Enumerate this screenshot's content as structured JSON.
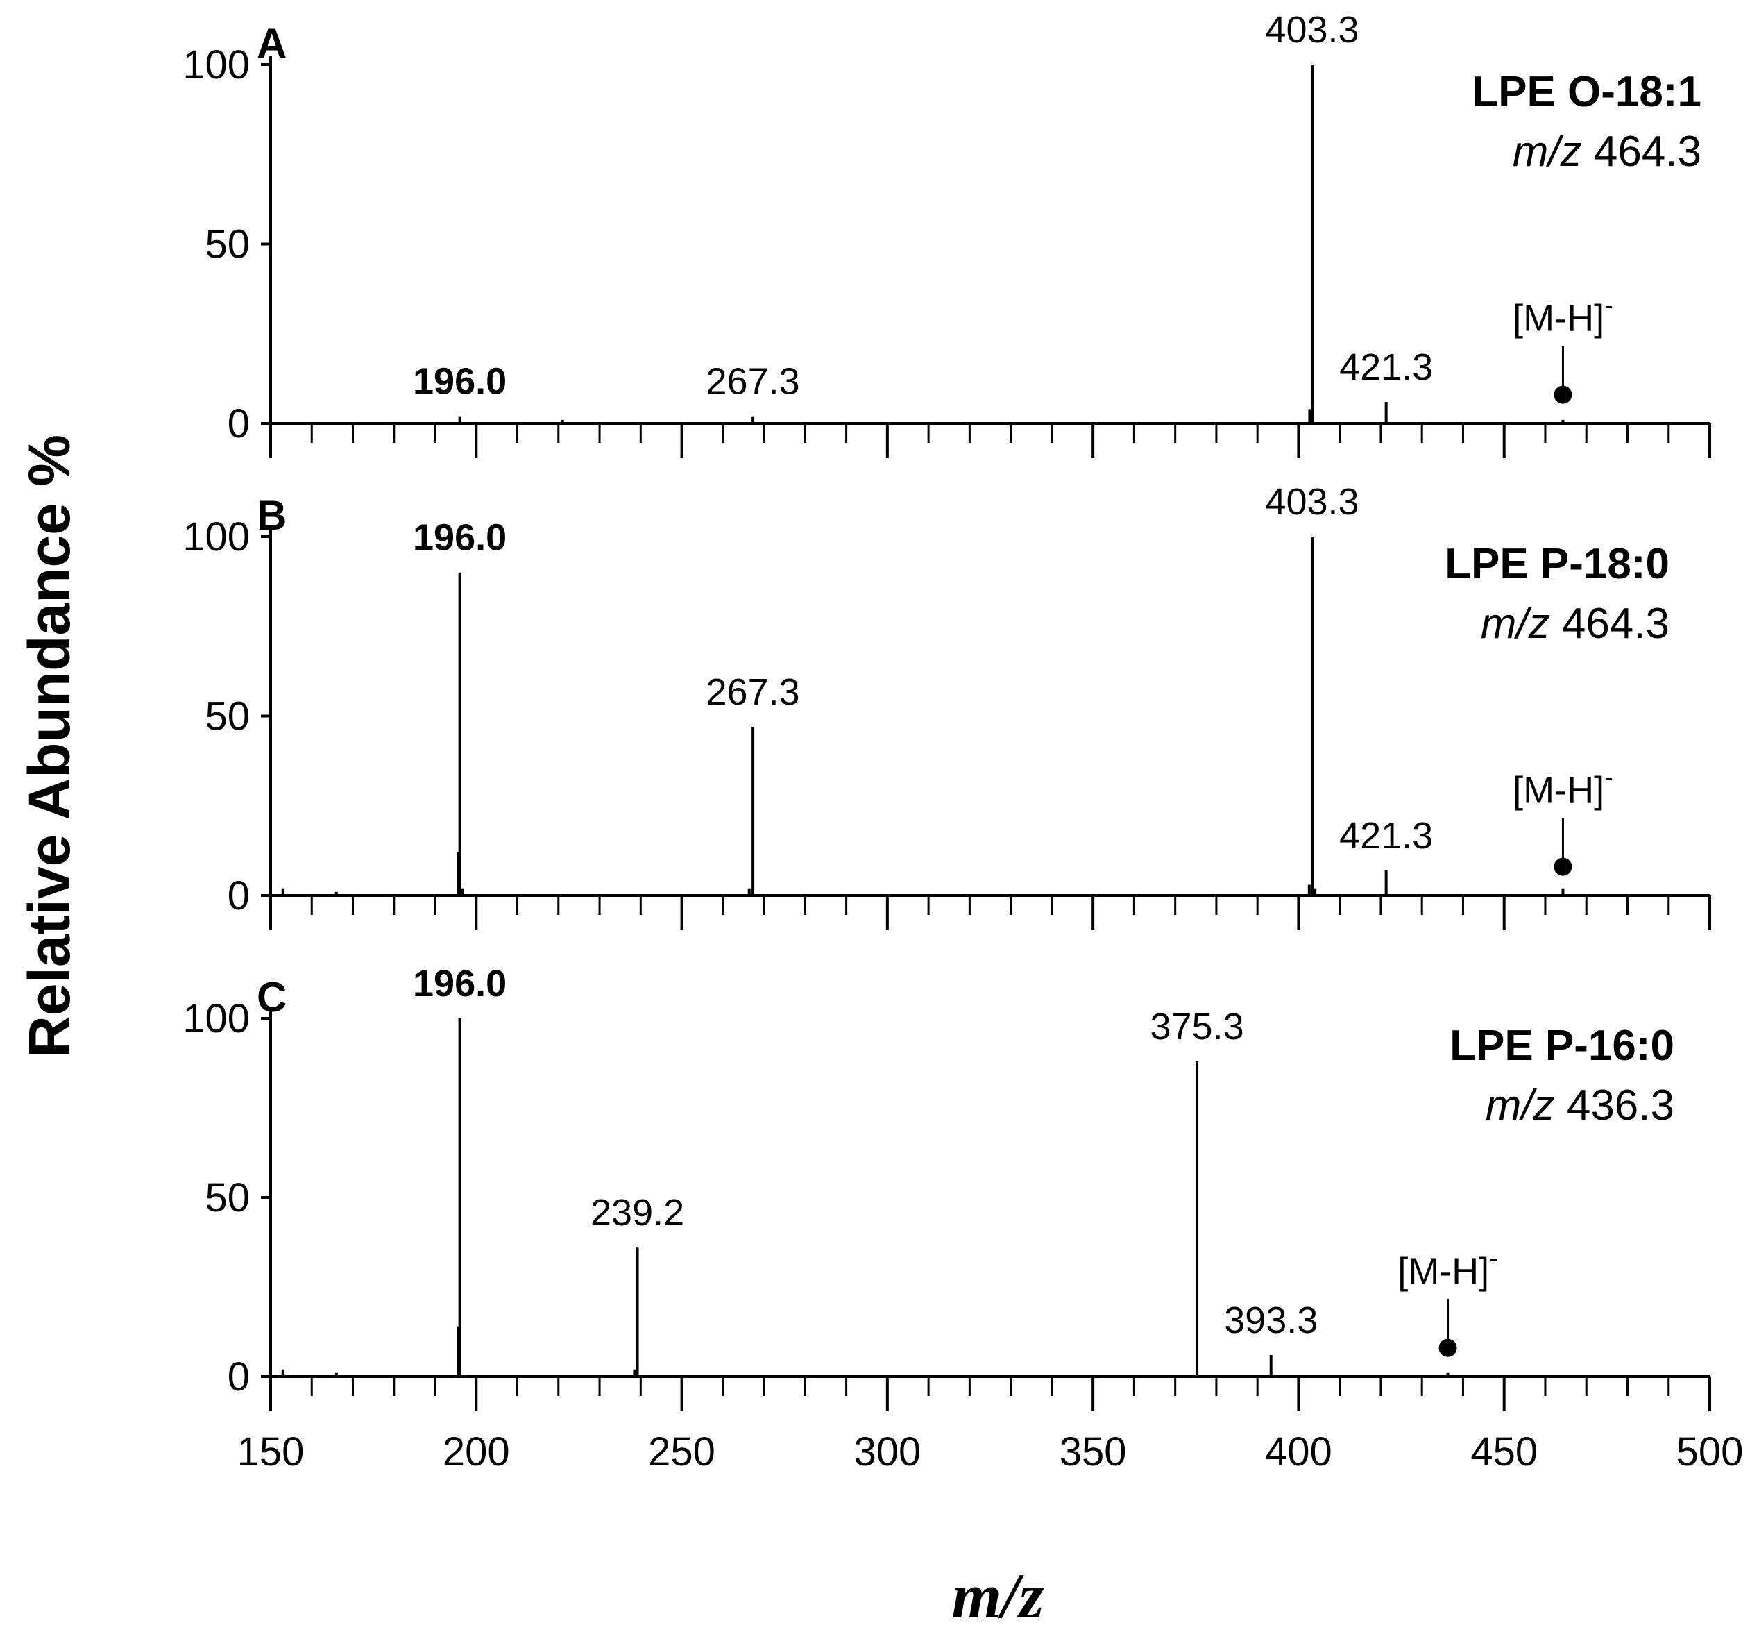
{
  "figure": {
    "ylabel": "Relative Abundance %",
    "xlabel": "m/z"
  },
  "chart_data": [
    {
      "type": "bar",
      "panel": "A",
      "title": "LPE O-18:1",
      "precursor": {
        "prefix": "m/z",
        "value": "464.3"
      },
      "xlim": [
        150,
        500
      ],
      "ylim": [
        0,
        100
      ],
      "yticks": [
        0,
        50,
        100
      ],
      "xticks": [
        150,
        200,
        250,
        300,
        350,
        400,
        450,
        500
      ],
      "show_xtick_labels": false,
      "peaks": [
        {
          "x": 196.0,
          "y": 2
        },
        {
          "x": 221.0,
          "y": 1
        },
        {
          "x": 267.3,
          "y": 2
        },
        {
          "x": 402.7,
          "y": 4
        },
        {
          "x": 403.3,
          "y": 100
        },
        {
          "x": 421.3,
          "y": 6
        },
        {
          "x": 464.3,
          "y": 1
        }
      ],
      "labels": [
        {
          "x": 196.0,
          "text": "196.0",
          "bold": true
        },
        {
          "x": 267.3,
          "text": "267.3",
          "bold": false
        },
        {
          "x": 403.3,
          "text": "403.3",
          "bold": false
        },
        {
          "x": 421.3,
          "text": "421.3",
          "bold": false
        }
      ],
      "marker": {
        "x": 464.3,
        "y": 8,
        "label": "[M-H]",
        "superscript": "-"
      }
    },
    {
      "type": "bar",
      "panel": "B",
      "title": "LPE P-18:0",
      "precursor": {
        "prefix": "m/z",
        "value": "464.3"
      },
      "xlim": [
        150,
        500
      ],
      "ylim": [
        0,
        100
      ],
      "yticks": [
        0,
        50,
        100
      ],
      "xticks": [
        150,
        200,
        250,
        300,
        350,
        400,
        450,
        500
      ],
      "show_xtick_labels": false,
      "peaks": [
        {
          "x": 153.0,
          "y": 2
        },
        {
          "x": 166.0,
          "y": 1
        },
        {
          "x": 195.7,
          "y": 12
        },
        {
          "x": 196.0,
          "y": 90
        },
        {
          "x": 196.6,
          "y": 2
        },
        {
          "x": 266.4,
          "y": 2
        },
        {
          "x": 267.3,
          "y": 47
        },
        {
          "x": 402.6,
          "y": 3
        },
        {
          "x": 403.3,
          "y": 100
        },
        {
          "x": 404.0,
          "y": 2
        },
        {
          "x": 421.3,
          "y": 7
        },
        {
          "x": 464.3,
          "y": 2
        }
      ],
      "labels": [
        {
          "x": 196.0,
          "text": "196.0",
          "bold": true
        },
        {
          "x": 267.3,
          "text": "267.3",
          "bold": false
        },
        {
          "x": 403.3,
          "text": "403.3",
          "bold": false
        },
        {
          "x": 421.3,
          "text": "421.3",
          "bold": false
        }
      ],
      "marker": {
        "x": 464.3,
        "y": 8,
        "label": "[M-H]",
        "superscript": "-"
      }
    },
    {
      "type": "bar",
      "panel": "C",
      "title": "LPE P-16:0",
      "precursor": {
        "prefix": "m/z",
        "value": "436.3"
      },
      "xlim": [
        150,
        500
      ],
      "ylim": [
        0,
        100
      ],
      "yticks": [
        0,
        50,
        100
      ],
      "xticks": [
        150,
        200,
        250,
        300,
        350,
        400,
        450,
        500
      ],
      "show_xtick_labels": true,
      "peaks": [
        {
          "x": 153.0,
          "y": 2
        },
        {
          "x": 166.0,
          "y": 1
        },
        {
          "x": 195.7,
          "y": 14
        },
        {
          "x": 196.0,
          "y": 100
        },
        {
          "x": 238.5,
          "y": 2
        },
        {
          "x": 239.2,
          "y": 36
        },
        {
          "x": 375.3,
          "y": 88
        },
        {
          "x": 393.3,
          "y": 6
        },
        {
          "x": 436.3,
          "y": 1
        }
      ],
      "labels": [
        {
          "x": 196.0,
          "text": "196.0",
          "bold": true
        },
        {
          "x": 239.2,
          "text": "239.2",
          "bold": false
        },
        {
          "x": 375.3,
          "text": "375.3",
          "bold": false
        },
        {
          "x": 393.3,
          "text": "393.3",
          "bold": false
        }
      ],
      "marker": {
        "x": 436.3,
        "y": 8,
        "label": "[M-H]",
        "superscript": "-"
      }
    }
  ]
}
